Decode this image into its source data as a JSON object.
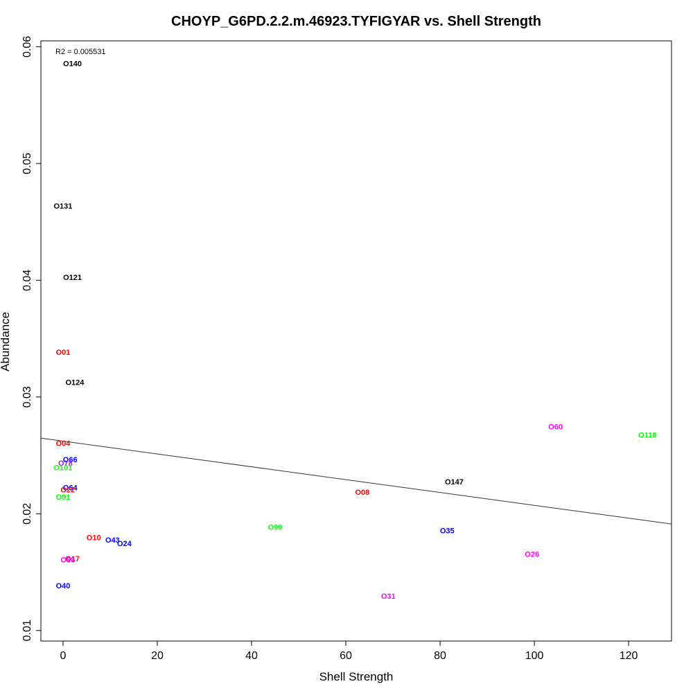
{
  "chart_data": {
    "type": "scatter",
    "title": "CHOYP_G6PD.2.2.m.46923.TYFIGYAR vs. Shell Strength",
    "xlabel": "Shell Strength",
    "ylabel": "Abundance",
    "annotation": "R2 = 0.005531",
    "xlim": [
      -4.7,
      129.1
    ],
    "ylim": [
      0.0091,
      0.0605
    ],
    "xticks": [
      "0",
      "20",
      "40",
      "60",
      "80",
      "100",
      "120"
    ],
    "yticks": [
      "0.01",
      "0.02",
      "0.03",
      "0.04",
      "0.05",
      "0.06"
    ],
    "xtick_values": [
      0,
      20,
      40,
      60,
      80,
      100,
      120
    ],
    "ytick_values": [
      0.01,
      0.02,
      0.03,
      0.04,
      0.05,
      0.06
    ],
    "grid": false,
    "trendline": {
      "x": [
        -4.7,
        129.1
      ],
      "y": [
        0.02648,
        0.01912
      ]
    },
    "points": [
      {
        "label": "O140",
        "x": 2.0,
        "y": 0.0585,
        "color": "#000000"
      },
      {
        "label": "O131",
        "x": 0.0,
        "y": 0.0463,
        "color": "#000000"
      },
      {
        "label": "O121",
        "x": 2.0,
        "y": 0.0402,
        "color": "#000000"
      },
      {
        "label": "O01",
        "x": 0.0,
        "y": 0.0338,
        "color": "#ff0000"
      },
      {
        "label": "O124",
        "x": 2.5,
        "y": 0.0312,
        "color": "#000000"
      },
      {
        "label": "O04",
        "x": 0.0,
        "y": 0.026,
        "color": "#ff0000"
      },
      {
        "label": "O66",
        "x": 1.5,
        "y": 0.0246,
        "color": "#0000ff"
      },
      {
        "label": "O78",
        "x": 0.5,
        "y": 0.0243,
        "color": "#a020f0"
      },
      {
        "label": "O101",
        "x": 0.0,
        "y": 0.0239,
        "color": "#00ff00"
      },
      {
        "label": "O64",
        "x": 1.5,
        "y": 0.0222,
        "color": "#0000ff"
      },
      {
        "label": "O22",
        "x": 1.0,
        "y": 0.022,
        "color": "#ff0000"
      },
      {
        "label": "O91",
        "x": 0.0,
        "y": 0.0214,
        "color": "#00ff00"
      },
      {
        "label": "O10",
        "x": 6.5,
        "y": 0.0179,
        "color": "#ff0000"
      },
      {
        "label": "O43",
        "x": 10.5,
        "y": 0.0177,
        "color": "#0000ff"
      },
      {
        "label": "O24",
        "x": 13.0,
        "y": 0.0174,
        "color": "#0000ff"
      },
      {
        "label": "O17",
        "x": 2.0,
        "y": 0.0161,
        "color": "#ff0000"
      },
      {
        "label": "O56",
        "x": 1.0,
        "y": 0.016,
        "color": "#ff00ff"
      },
      {
        "label": "O40",
        "x": 0.0,
        "y": 0.0138,
        "color": "#0000ff"
      },
      {
        "label": "O99",
        "x": 45.0,
        "y": 0.0188,
        "color": "#00ff00"
      },
      {
        "label": "O08",
        "x": 63.5,
        "y": 0.0218,
        "color": "#ff0000"
      },
      {
        "label": "O31",
        "x": 69.0,
        "y": 0.0129,
        "color": "#ff00ff"
      },
      {
        "label": "O147",
        "x": 83.0,
        "y": 0.0227,
        "color": "#000000"
      },
      {
        "label": "O35",
        "x": 81.5,
        "y": 0.0185,
        "color": "#0000ff"
      },
      {
        "label": "O26",
        "x": 99.5,
        "y": 0.0165,
        "color": "#ff00ff"
      },
      {
        "label": "O60",
        "x": 104.5,
        "y": 0.0274,
        "color": "#ff00ff"
      },
      {
        "label": "O118",
        "x": 124.0,
        "y": 0.0267,
        "color": "#00ff00"
      }
    ]
  }
}
